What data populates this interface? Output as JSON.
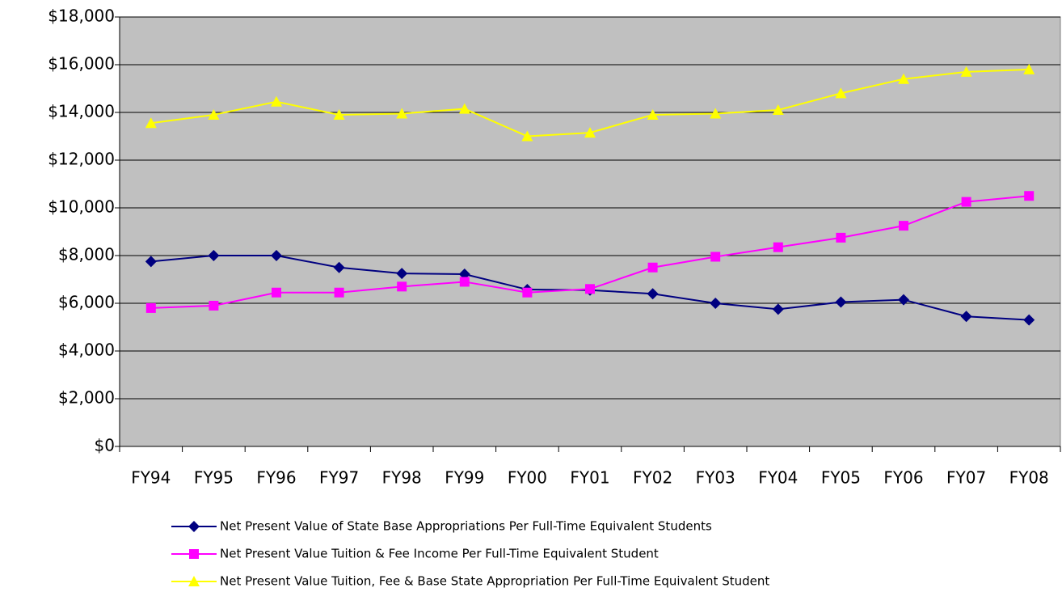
{
  "chart_data": {
    "type": "line",
    "categories": [
      "FY94",
      "FY95",
      "FY96",
      "FY97",
      "FY98",
      "FY99",
      "FY00",
      "FY01",
      "FY02",
      "FY03",
      "FY04",
      "FY05",
      "FY06",
      "FY07",
      "FY08"
    ],
    "series": [
      {
        "name": "Net Present Value of State Base Appropriations Per Full-Time Equivalent Students",
        "color": "#000080",
        "marker": "diamond",
        "values": [
          7750,
          8000,
          8000,
          7500,
          7250,
          7220,
          6575,
          6550,
          6400,
          6000,
          5750,
          6050,
          6150,
          5450,
          5300
        ]
      },
      {
        "name": "Net Present Value Tuition & Fee Income Per Full-Time Equivalent Student",
        "color": "#ff00ff",
        "marker": "square",
        "values": [
          5800,
          5900,
          6450,
          6450,
          6700,
          6900,
          6450,
          6600,
          7500,
          7950,
          8350,
          8750,
          9250,
          10250,
          10500
        ]
      },
      {
        "name": "Net Present Value Tuition, Fee & Base State Appropriation Per Full-Time Equivalent Student",
        "color": "#ffff00",
        "marker": "triangle",
        "values": [
          13550,
          13900,
          14450,
          13900,
          13950,
          14150,
          13000,
          13150,
          13900,
          13950,
          14100,
          14800,
          15400,
          15700,
          15800
        ]
      }
    ],
    "ylim": [
      0,
      18000
    ],
    "yticks": [
      {
        "value": 0,
        "label": "$0"
      },
      {
        "value": 2000,
        "label": "$2,000"
      },
      {
        "value": 4000,
        "label": "$4,000"
      },
      {
        "value": 6000,
        "label": "$6,000"
      },
      {
        "value": 8000,
        "label": "$8,000"
      },
      {
        "value": 10000,
        "label": "$10,000"
      },
      {
        "value": 12000,
        "label": "$12,000"
      },
      {
        "value": 14000,
        "label": "$14,000"
      },
      {
        "value": 16000,
        "label": "$16,000"
      },
      {
        "value": 18000,
        "label": "$18,000"
      }
    ],
    "grid": true,
    "plot_background": "#c0c0c0",
    "legend": "bottom"
  }
}
